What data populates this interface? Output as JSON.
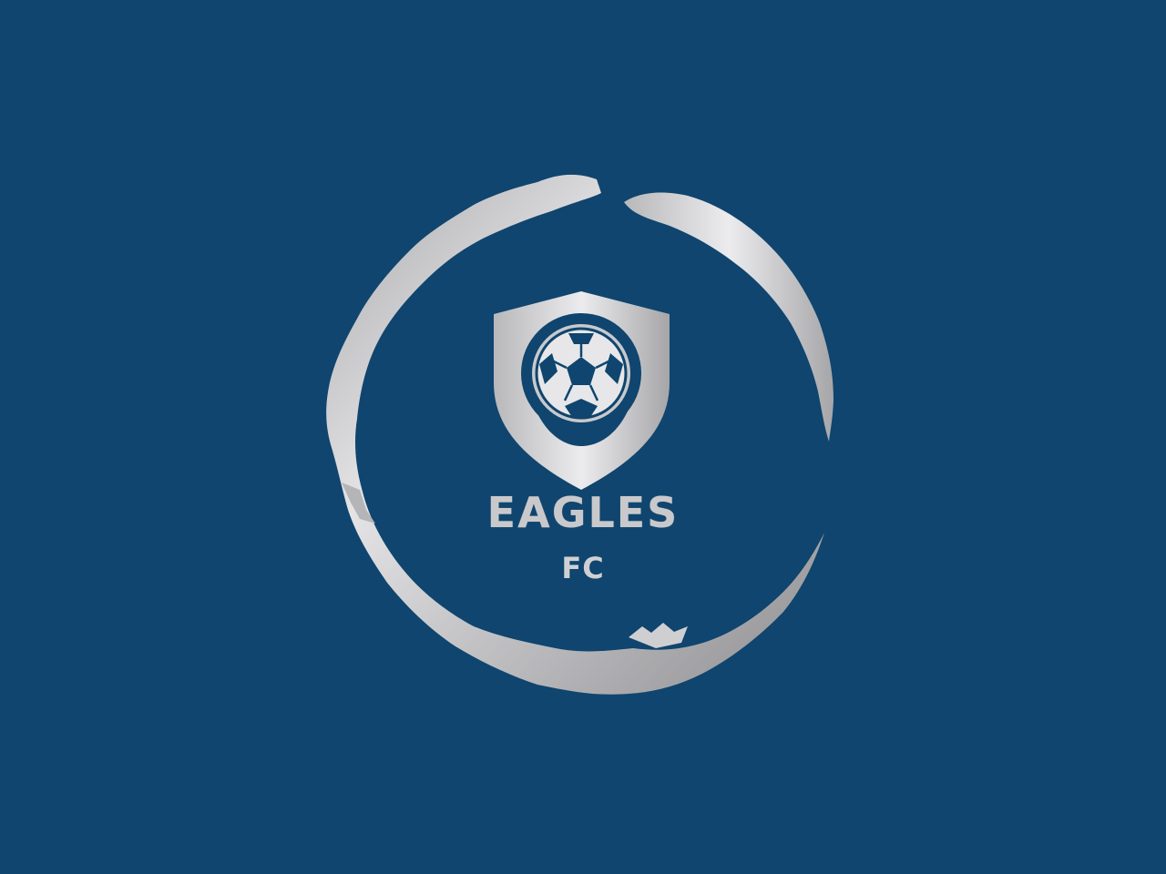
{
  "logo": {
    "name": "EAGLES",
    "suffix": "FC",
    "icon": "soccer-ball-shield-icon",
    "ring": "brush-ring",
    "colors": {
      "background": "#0f456e",
      "silver_light": "#e6e6e8",
      "silver_mid": "#bdbdc0",
      "silver_dark": "#9a9a9d"
    }
  }
}
